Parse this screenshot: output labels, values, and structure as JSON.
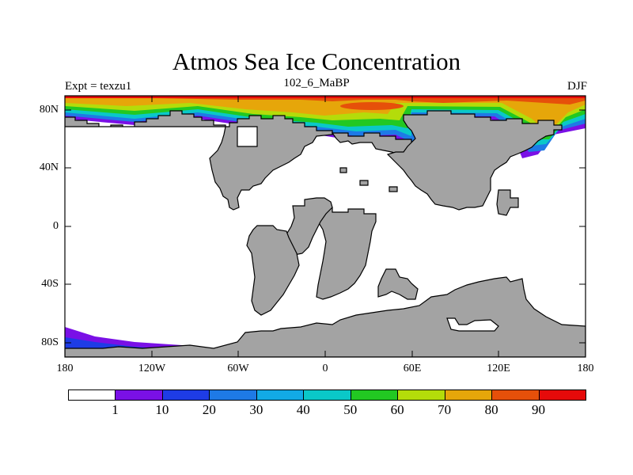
{
  "title": "Atmos Sea Ice Concentration",
  "left_label": "Expt = texzu1",
  "center_label": "102_6_MaBP",
  "right_label": "DJF",
  "axes": {
    "y_ticks": [
      "80N",
      "40N",
      "0",
      "40S",
      "80S"
    ],
    "x_ticks": [
      "180",
      "120W",
      "60W",
      "0",
      "60E",
      "120E",
      "180"
    ]
  },
  "colorbar": {
    "levels": [
      "1",
      "10",
      "20",
      "30",
      "40",
      "50",
      "60",
      "70",
      "80",
      "90"
    ],
    "colors": [
      "#ffffff",
      "#7a10e6",
      "#1e3ce6",
      "#1e7ae6",
      "#12aae6",
      "#0ac8c8",
      "#22c822",
      "#b4dc0a",
      "#e6a60a",
      "#e6500a",
      "#e60a0a"
    ]
  },
  "colors": {
    "land": "#a3a3a3",
    "ocean": "#ffffff"
  }
}
